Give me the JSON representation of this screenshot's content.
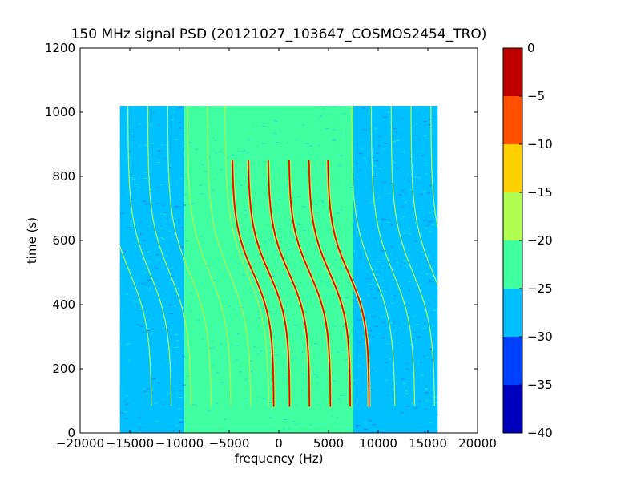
{
  "chart_data": {
    "type": "heatmap",
    "title": "150 MHz signal PSD (20121027_103647_COSMOS2454_TRO)",
    "xlabel": "frequency (Hz)",
    "ylabel": "time (s)",
    "xlim": [
      -20000,
      20000
    ],
    "ylim": [
      0,
      1200
    ],
    "xticks": [
      -20000,
      -15000,
      -10000,
      -5000,
      0,
      5000,
      10000,
      15000,
      20000
    ],
    "xtick_labels": [
      "−20000",
      "−15000",
      "−10000",
      "−5000",
      "0",
      "5000",
      "10000",
      "15000",
      "20000"
    ],
    "yticks": [
      0,
      200,
      400,
      600,
      800,
      1000,
      1200
    ],
    "ytick_labels": [
      "0",
      "200",
      "400",
      "600",
      "800",
      "1000",
      "1200"
    ],
    "data_extent": {
      "x": [
        -16000,
        16000
      ],
      "y": [
        0,
        1020
      ]
    },
    "background_regions": [
      {
        "x": [
          -16000,
          -9500
        ],
        "level": -27
      },
      {
        "x": [
          -9500,
          -7500
        ],
        "level": -24
      },
      {
        "x": [
          -7500,
          6500
        ],
        "level": -22
      },
      {
        "x": [
          6500,
          7500
        ],
        "level": -24
      },
      {
        "x": [
          7500,
          16000
        ],
        "level": -27
      }
    ],
    "colorbar": {
      "levels": [
        -40,
        -35,
        -30,
        -25,
        -20,
        -15,
        -10,
        -5,
        0
      ],
      "tick_labels": [
        "−40",
        "−35",
        "−30",
        "−25",
        "−20",
        "−15",
        "−10",
        "−5",
        "0"
      ],
      "colors": [
        "#0000bf",
        "#0040ff",
        "#00c0ff",
        "#40ffa0",
        "#b0ff50",
        "#ffd000",
        "#ff5000",
        "#c00000"
      ]
    },
    "traces_note_values": [
      {
        "freq_at_500s": -2600,
        "end_time": 850,
        "peak": -2
      },
      {
        "freq_at_500s": -1000,
        "end_time": 850,
        "peak": -2
      },
      {
        "freq_at_500s": 1000,
        "end_time": 850,
        "peak": -2
      },
      {
        "freq_at_500s": 3100,
        "end_time": 850,
        "peak": -2
      },
      {
        "freq_at_500s": 5100,
        "end_time": 850,
        "peak": -2
      },
      {
        "freq_at_500s": 7000,
        "end_time": 850,
        "peak": -2
      }
    ]
  }
}
